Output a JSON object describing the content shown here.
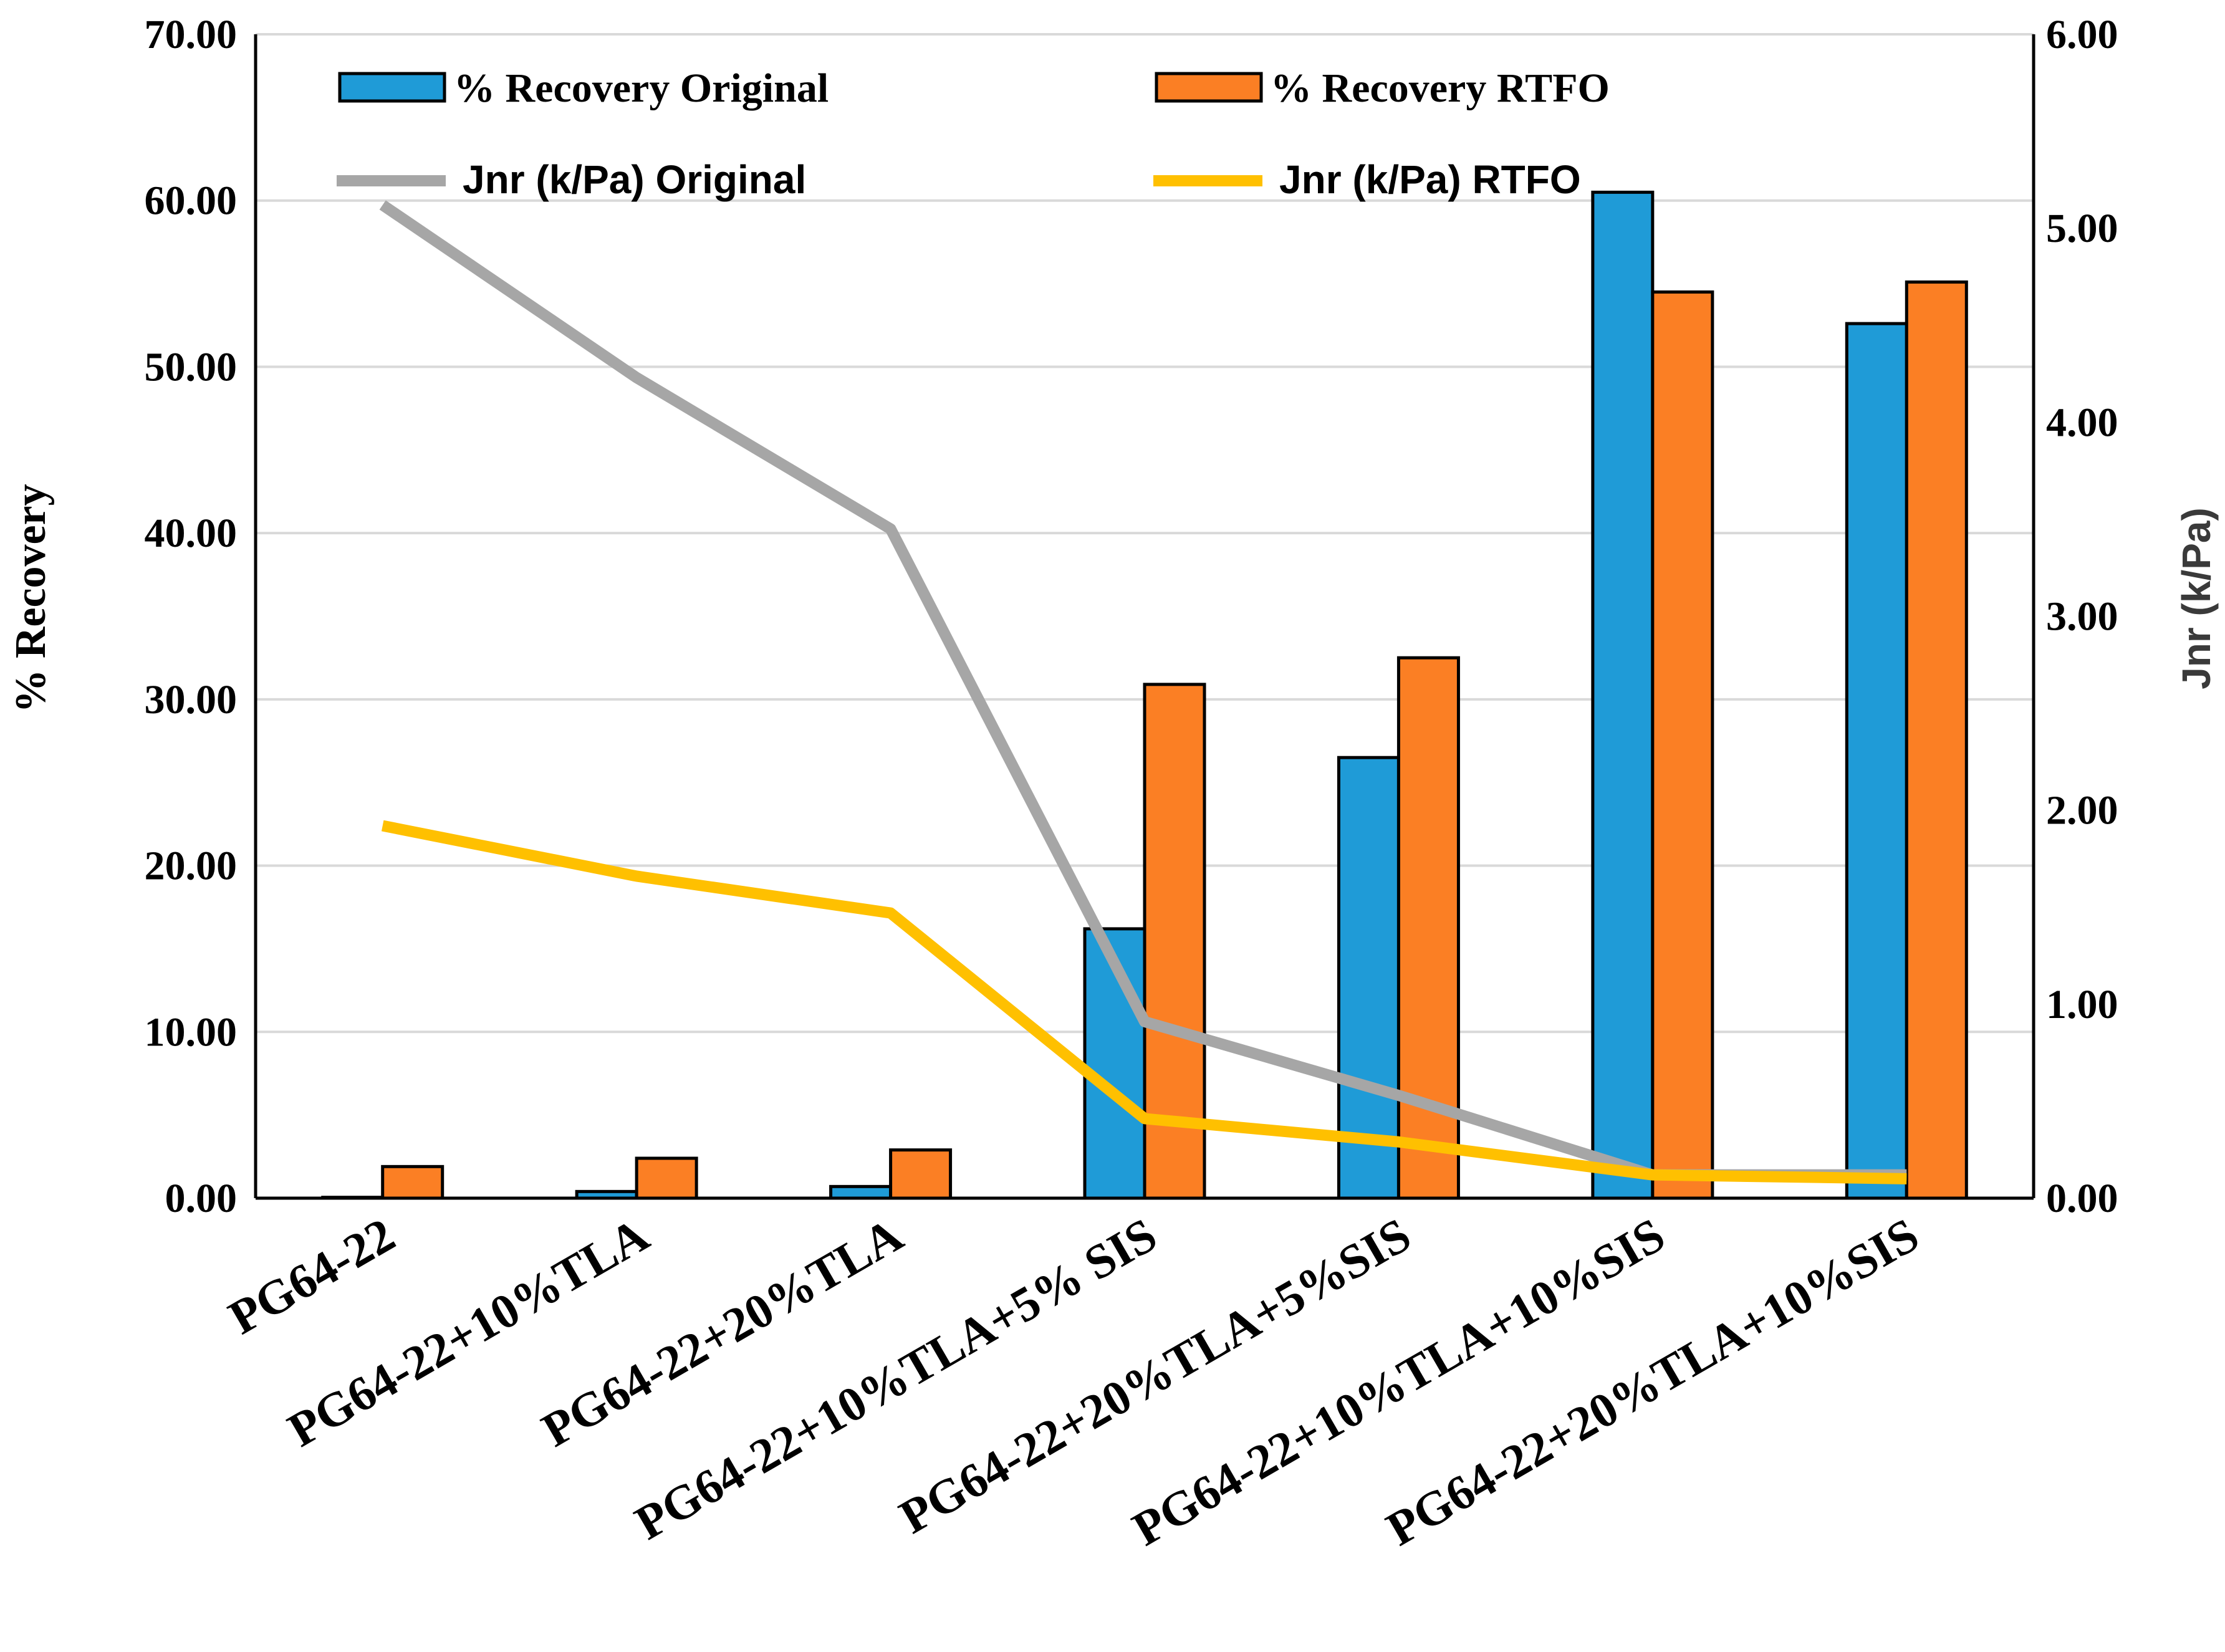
{
  "chart_data": {
    "type": "bar",
    "categories": [
      "PG64-22",
      "PG64-22+10%TLA",
      "PG64-22+20%TLA",
      "PG64-22+10%TLA+5% SIS",
      "PG64-22+20%TLA+5%SIS",
      "PG64-22+10%TLA+10%SIS",
      "PG64-22+20%TLA+10%SIS"
    ],
    "series": [
      {
        "name": "% Recovery Original",
        "kind": "bar",
        "axis": "left",
        "color": "#1f9bd7",
        "values": [
          0.05,
          0.4,
          0.7,
          16.2,
          26.5,
          60.5,
          52.6
        ]
      },
      {
        "name": "% Recovery RTFO",
        "kind": "bar",
        "axis": "left",
        "color": "#fb7f24",
        "values": [
          1.9,
          2.4,
          2.9,
          30.9,
          32.5,
          54.5,
          55.1
        ]
      },
      {
        "name": "Jnr (k/Pa) Original",
        "kind": "line",
        "axis": "right",
        "color": "#a6a6a6",
        "values": [
          5.12,
          4.23,
          3.45,
          0.91,
          0.53,
          0.12,
          0.12
        ]
      },
      {
        "name": "Jnr (k/Pa) RTFO",
        "kind": "line",
        "axis": "right",
        "color": "#ffc000",
        "values": [
          1.92,
          1.66,
          1.47,
          0.41,
          0.29,
          0.12,
          0.1
        ]
      }
    ],
    "ylabel": "% Recovery",
    "y2label": "Jnr  (k/Pa)",
    "ylim": [
      0,
      70
    ],
    "y2lim": [
      0,
      6
    ],
    "yticks": [
      "0.00",
      "10.00",
      "20.00",
      "30.00",
      "40.00",
      "50.00",
      "60.00",
      "70.00"
    ],
    "y2ticks": [
      "0.00",
      "1.00",
      "2.00",
      "3.00",
      "4.00",
      "5.00",
      "6.00"
    ],
    "grid": true,
    "legend": "top"
  }
}
